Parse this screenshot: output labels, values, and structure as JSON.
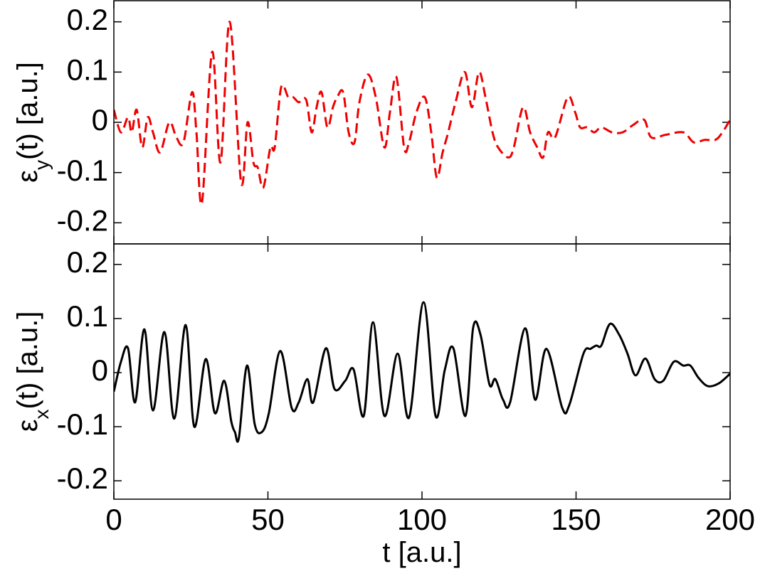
{
  "chart_data": [
    {
      "type": "line",
      "ylabel": [
        "ε",
        "y",
        "(t) [a.u.]"
      ],
      "x": [
        0,
        2.3,
        4.6,
        5.8,
        7.4,
        9.2,
        11,
        12.7,
        15,
        18,
        20.3,
        22.6,
        25.4,
        26.8,
        28.6,
        31.9,
        34.6,
        37.6,
        41.3,
        43.4,
        45.3,
        46.7,
        48.5,
        50.8,
        52.2,
        54.3,
        56.6,
        58.2,
        60,
        62.4,
        64.2,
        65.8,
        67.4,
        69.3,
        71.1,
        72.5,
        74.4,
        76.2,
        78.1,
        79.7,
        82.4,
        85,
        87.8,
        89.6,
        91.7,
        94.2,
        95.8,
        98.2,
        100.9,
        103,
        104.8,
        106.7,
        108.5,
        110.9,
        113.9,
        116.2,
        118.5,
        120.6,
        122.9,
        124.7,
        128,
        129.8,
        132.8,
        135.1,
        137.4,
        139.3,
        140.9,
        143.2,
        147.3,
        149.7,
        151.3,
        153.6,
        155.9,
        158.2,
        161.7,
        165.1,
        168.6,
        172.1,
        174.4,
        179,
        184.8,
        188.2,
        191.7,
        195.2,
        197.5,
        200
      ],
      "values": [
        0.025,
        -0.02,
        0.01,
        -0.02,
        0.025,
        -0.05,
        0.01,
        -0.02,
        -0.06,
        0.0,
        -0.03,
        -0.04,
        0.06,
        -0.02,
        -0.16,
        0.14,
        -0.08,
        0.2,
        -0.12,
        0.0,
        -0.08,
        -0.09,
        -0.13,
        -0.05,
        -0.05,
        0.07,
        0.05,
        0.05,
        0.04,
        0.045,
        -0.02,
        0.03,
        0.06,
        -0.01,
        0.03,
        0.05,
        0.06,
        -0.02,
        -0.04,
        0.04,
        0.095,
        0.05,
        -0.05,
        0.02,
        0.09,
        -0.05,
        -0.04,
        0.02,
        0.05,
        -0.02,
        -0.11,
        -0.06,
        -0.02,
        0.04,
        0.1,
        0.03,
        0.1,
        0.05,
        -0.02,
        -0.05,
        -0.07,
        -0.05,
        0.03,
        -0.02,
        -0.05,
        -0.07,
        -0.02,
        -0.03,
        0.05,
        0.02,
        -0.01,
        -0.01,
        -0.02,
        -0.01,
        -0.02,
        -0.02,
        -0.005,
        0.005,
        -0.03,
        -0.025,
        -0.02,
        -0.04,
        -0.035,
        -0.035,
        -0.02,
        0.005
      ],
      "color": "#ee0000",
      "line_style": "dashed",
      "xlim": [
        0,
        200
      ],
      "xticks": [
        0,
        50,
        100,
        150,
        200
      ],
      "show_xtick_labels": false,
      "ylim": [
        -0.242,
        0.242
      ],
      "yticks": [
        -0.2,
        -0.1,
        0,
        0.1,
        0.2
      ]
    },
    {
      "type": "line",
      "ylabel": [
        "ε",
        "x",
        "(t) [a.u.]"
      ],
      "xlabel": "t [a.u.]",
      "x": [
        0,
        2.3,
        4.6,
        6.9,
        9.9,
        12.7,
        16.4,
        19.6,
        23.3,
        26.1,
        29.8,
        32.8,
        35.8,
        38.1,
        39.3,
        40.6,
        43.2,
        45.7,
        48,
        50.3,
        54,
        57.7,
        60,
        62.8,
        64.7,
        68.8,
        71.6,
        75.1,
        77.8,
        81.1,
        84.1,
        87.8,
        92.1,
        95.8,
        100.5,
        104.4,
        107.4,
        110.2,
        114.1,
        116.6,
        119,
        121.9,
        123.8,
        126.3,
        128.6,
        133.5,
        136.7,
        140.4,
        145.5,
        147.8,
        152.4,
        154.7,
        156.6,
        158.2,
        161,
        164,
        166.7,
        169.3,
        172.5,
        175.5,
        178.3,
        181.7,
        184.8,
        187.1,
        189.8,
        192.8,
        196.3,
        200
      ],
      "values": [
        -0.035,
        0.02,
        0.045,
        -0.055,
        0.08,
        -0.07,
        0.075,
        -0.085,
        0.088,
        -0.1,
        0.025,
        -0.075,
        -0.015,
        -0.09,
        -0.11,
        -0.12,
        0.013,
        -0.095,
        -0.11,
        -0.075,
        0.04,
        -0.065,
        -0.055,
        -0.012,
        -0.055,
        0.045,
        -0.03,
        -0.015,
        0.006,
        -0.08,
        0.093,
        -0.08,
        0.035,
        -0.083,
        0.13,
        -0.08,
        0.005,
        0.045,
        -0.08,
        0.083,
        0.07,
        -0.022,
        -0.012,
        -0.05,
        -0.055,
        0.082,
        -0.05,
        0.044,
        -0.065,
        -0.06,
        0.035,
        0.044,
        0.05,
        0.05,
        0.09,
        0.07,
        0.035,
        -0.005,
        0.026,
        -0.012,
        -0.015,
        0.02,
        0.013,
        0.013,
        -0.01,
        -0.025,
        -0.02,
        -0.002
      ],
      "color": "#000000",
      "line_style": "solid",
      "xlim": [
        0,
        200
      ],
      "xticks": [
        0,
        50,
        100,
        150,
        200
      ],
      "show_xtick_labels": true,
      "ylim": [
        -0.234,
        0.238
      ],
      "yticks": [
        -0.2,
        -0.1,
        0,
        0.1,
        0.2
      ]
    }
  ]
}
